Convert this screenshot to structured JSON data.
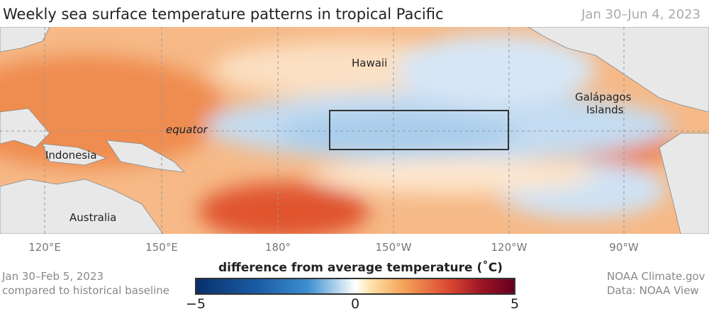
{
  "header": {
    "title": "Weekly sea surface temperature patterns in tropical Pacific",
    "date_range": "Jan 30–Jun 4, 2023"
  },
  "map": {
    "labels": {
      "hawaii": "Hawaii",
      "galapagos_line1": "Galápagos",
      "galapagos_line2": "Islands",
      "equator": "equator",
      "indonesia": "Indonesia",
      "australia": "Australia"
    },
    "longitudes": [
      "120°E",
      "150°E",
      "180°",
      "150°W",
      "120°W",
      "90°W"
    ],
    "colors": {
      "warm": "#f4a86a",
      "cool": "#bcd6ee",
      "land": "#e8e8e8"
    }
  },
  "legend": {
    "title": "difference from average temperature (˚C)",
    "min": "−5",
    "mid": "0",
    "max": "5",
    "colors": [
      "#08306b",
      "#3b8fd0",
      "#ffffff",
      "#f5a45a",
      "#d9452f",
      "#67001f"
    ]
  },
  "footer": {
    "period": "Jan 30–Feb 5, 2023",
    "baseline": "compared to historical baseline",
    "credit": "NOAA Climate.gov",
    "source": "Data: NOAA View"
  }
}
